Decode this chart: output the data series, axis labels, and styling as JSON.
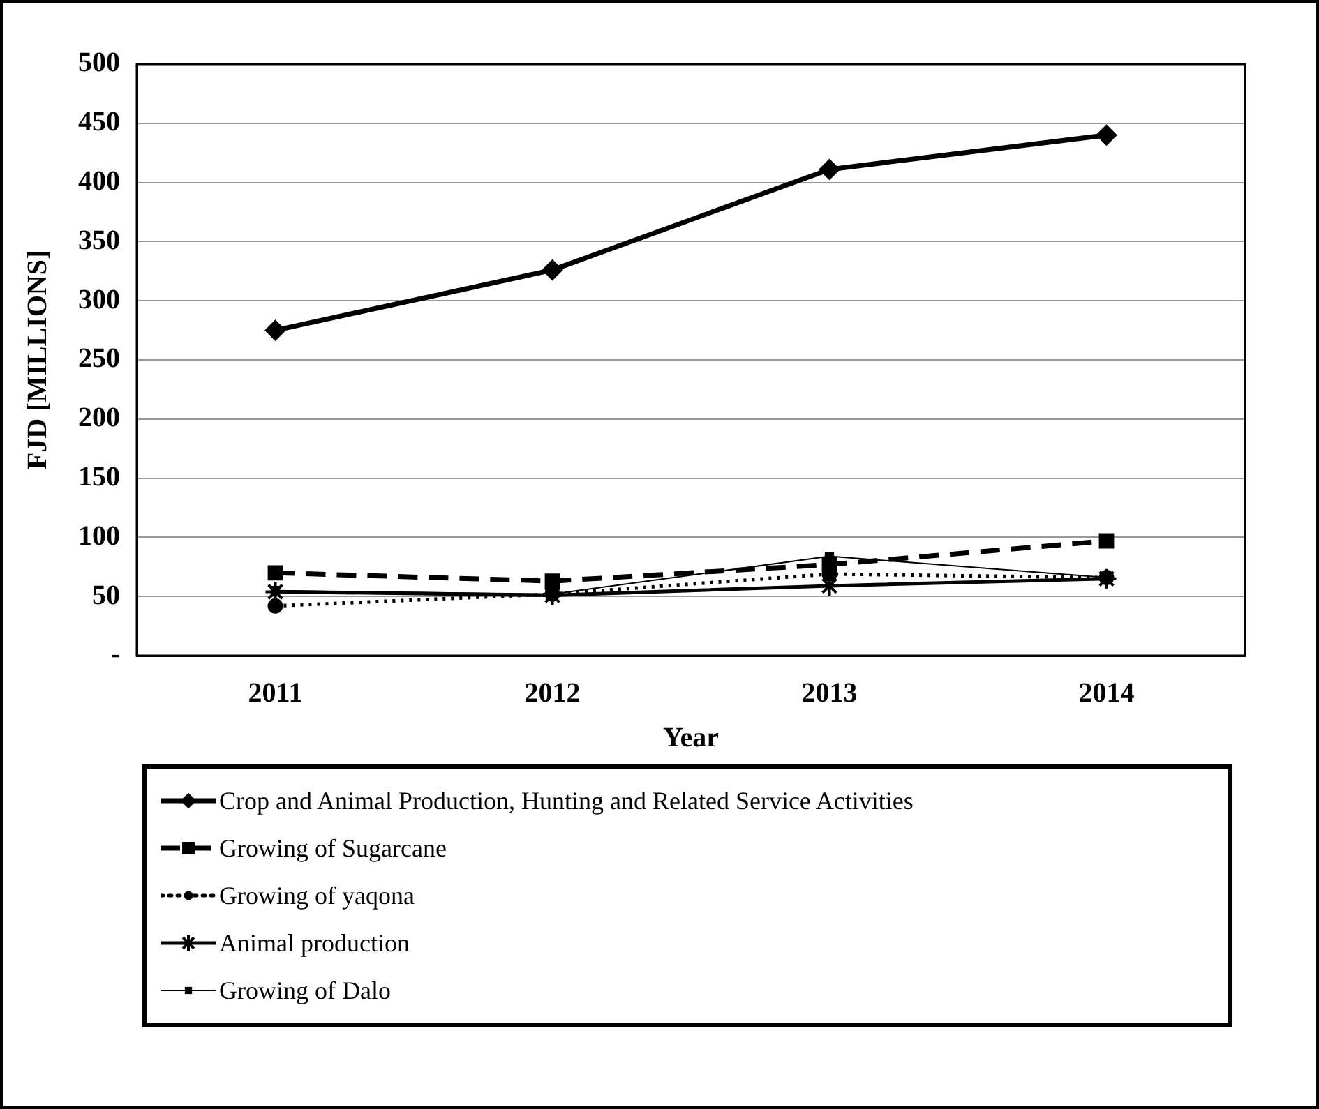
{
  "chart_data": {
    "type": "line",
    "xlabel": "Year",
    "ylabel": "FJD [MILLIONS]",
    "categories": [
      "2011",
      "2012",
      "2013",
      "2014"
    ],
    "series": [
      {
        "name": "Crop and Animal Production, Hunting and Related Service Activities",
        "color": "#000000",
        "values": [
          275,
          326,
          411,
          440
        ],
        "marker": "diamond",
        "line_style": "solid"
      },
      {
        "name": "Growing of Sugarcane",
        "color": "#000000",
        "values": [
          70,
          63,
          77,
          97
        ],
        "marker": "square",
        "line_style": "dashed"
      },
      {
        "name": "Growing of yaqona",
        "color": "#000000",
        "values": [
          42,
          52,
          69,
          66
        ],
        "marker": "circle",
        "line_style": "dotted"
      },
      {
        "name": "Animal production",
        "color": "#000000",
        "values": [
          54,
          51,
          59,
          65
        ],
        "marker": "cross",
        "line_style": "solid"
      },
      {
        "name": "Growing of Dalo",
        "color": "#000000",
        "values": [
          55,
          52,
          84,
          66
        ],
        "marker": "square",
        "line_style": "solid"
      }
    ],
    "ylim": [
      0,
      500
    ],
    "yticks": [
      {
        "value": 0,
        "label": "-"
      },
      50,
      100,
      150,
      200,
      250,
      300,
      350,
      400,
      450,
      500
    ],
    "grid": "y",
    "legend": "bottom"
  }
}
